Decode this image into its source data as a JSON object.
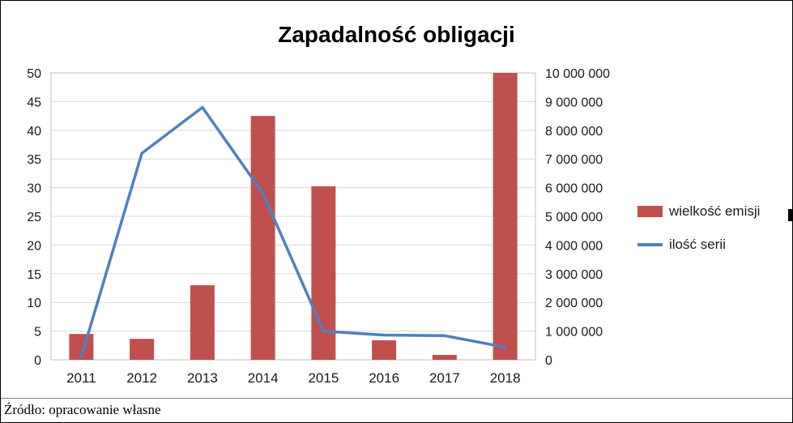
{
  "source_note": "Źródło: opracowanie własne",
  "chart_data": {
    "type": "bar",
    "subtype": "bar+line combo, dual axis",
    "title": "Zapadalność obligacji",
    "categories": [
      "2011",
      "2012",
      "2013",
      "2014",
      "2015",
      "2016",
      "2017",
      "2018"
    ],
    "series": [
      {
        "name": "wielkość emisji",
        "type": "bar",
        "axis": "right",
        "color": "#c0504d",
        "values": [
          900000,
          730000,
          2600000,
          8500000,
          6050000,
          680000,
          170000,
          10000000
        ]
      },
      {
        "name": "ilość serii",
        "type": "line",
        "axis": "left",
        "color": "#4f81bd",
        "values": [
          0.5,
          36,
          44,
          29,
          5,
          4.3,
          4.2,
          2.2
        ]
      }
    ],
    "left_axis": {
      "min": 0,
      "max": 50,
      "step": 5,
      "ticks": [
        "0",
        "5",
        "10",
        "15",
        "20",
        "25",
        "30",
        "35",
        "40",
        "45",
        "50"
      ]
    },
    "right_axis": {
      "min": 0,
      "max": 10000000,
      "step": 1000000,
      "ticks": [
        "0",
        "1 000 000",
        "2 000 000",
        "3 000 000",
        "4 000 000",
        "5 000 000",
        "6 000 000",
        "7 000 000",
        "8 000 000",
        "9 000 000",
        "10 000 000"
      ]
    },
    "grid": true,
    "gridline_color": "#d9d9d9",
    "axis_line_color": "#595959",
    "plot_border_color": "#bfbfbf",
    "legend_position": "right"
  }
}
